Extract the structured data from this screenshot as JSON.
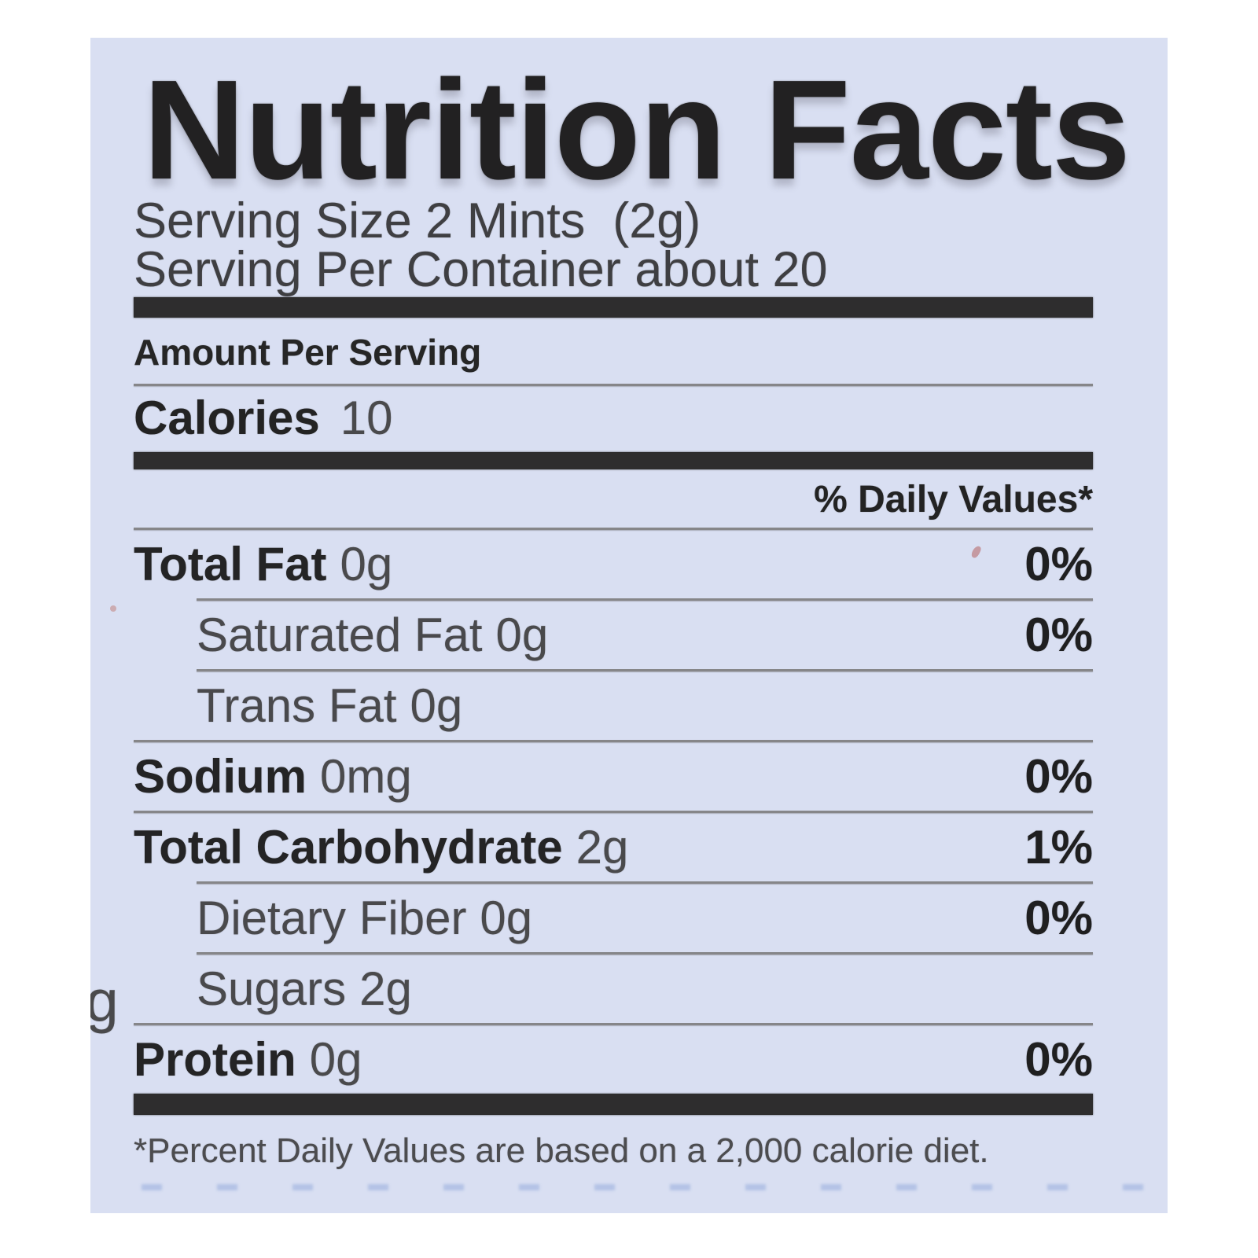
{
  "label": {
    "title": "Nutrition Facts",
    "serving_size": "Serving Size 2 Mints  (2g)",
    "servings_per_container": "Serving Per Container about 20",
    "amount_per_serving": "Amount Per Serving",
    "calories_label": "Calories",
    "calories_value": "10",
    "daily_values_header": "% Daily Values*",
    "rows": [
      {
        "name": "Total Fat",
        "amount": "0g",
        "dv": "0%"
      },
      {
        "name": "Saturated Fat",
        "amount": "0g",
        "dv": "0%"
      },
      {
        "name": "Trans Fat",
        "amount": "0g",
        "dv": ""
      },
      {
        "name": "Sodium",
        "amount": "0mg",
        "dv": "0%"
      },
      {
        "name": "Total Carbohydrate",
        "amount": "2g",
        "dv": "1%"
      },
      {
        "name": "Dietary Fiber",
        "amount": "0g",
        "dv": "0%"
      },
      {
        "name": "Sugars",
        "amount": "2g",
        "dv": ""
      },
      {
        "name": "Protein",
        "amount": "0g",
        "dv": "0%"
      }
    ],
    "footnote": "*Percent Daily Values are based on a 2,000 calorie diet.",
    "stray_character": "g",
    "colors": {
      "page_bg": "#ffffff",
      "label_bg": "#d9dff2",
      "title_text": "#222122",
      "body_text": "#4a4a4c",
      "bold_text": "#242425",
      "rule": "#868689",
      "bar": "#2e2d2e",
      "dots": "#96acdc"
    }
  }
}
